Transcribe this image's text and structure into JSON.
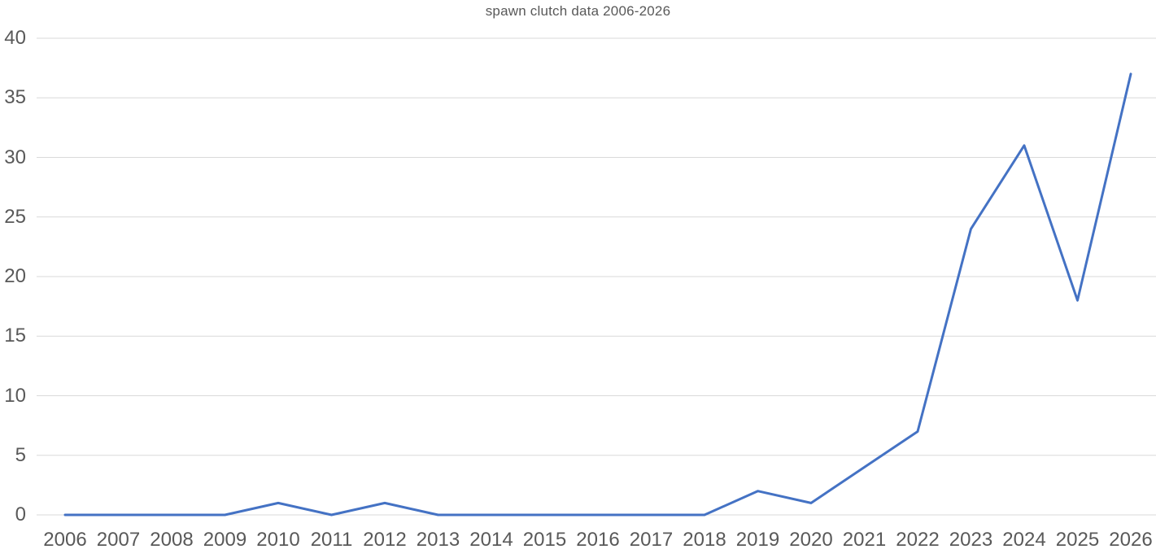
{
  "chart_data": {
    "type": "line",
    "title": "spawn clutch data 2006-2026",
    "categories": [
      "2006",
      "2007",
      "2008",
      "2009",
      "2010",
      "2011",
      "2012",
      "2013",
      "2014",
      "2015",
      "2016",
      "2017",
      "2018",
      "2019",
      "2020",
      "2021",
      "2022",
      "2023",
      "2024",
      "2025",
      "2026"
    ],
    "values": [
      0,
      0,
      0,
      0,
      1,
      0,
      1,
      0,
      0,
      0,
      0,
      0,
      0,
      2,
      1,
      4,
      7,
      24,
      31,
      18,
      37
    ],
    "xlabel": "",
    "ylabel": "",
    "y_ticks": [
      0,
      5,
      10,
      15,
      20,
      25,
      30,
      35,
      40
    ],
    "ylim": [
      0,
      40
    ],
    "grid": "horizontal",
    "legend": "none",
    "colors": {
      "line": "#4472C4",
      "gridline": "#D9D9D9",
      "tick_label": "#595959",
      "title": "#595959",
      "background": "#FFFFFF"
    }
  }
}
